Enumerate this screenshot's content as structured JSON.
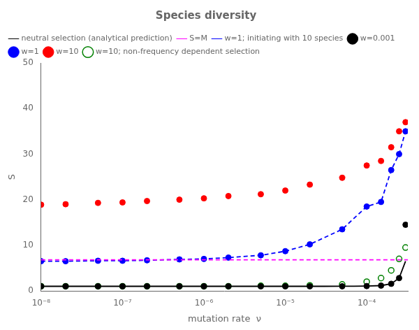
{
  "chart_data": {
    "type": "line",
    "title": "Species diversity",
    "x_label": "mutation rate  ν",
    "y_label": "S",
    "log": "x",
    "grid": false,
    "legend": "upper left",
    "xlim": [
      1e-08,
      0.00032
    ],
    "xticks": [
      {
        "value": 1e-08,
        "label": "10⁻⁸"
      },
      {
        "value": 1e-07,
        "label": "10⁻⁷"
      },
      {
        "value": 1e-06,
        "label": "10⁻⁶"
      },
      {
        "value": 1e-05,
        "label": "10⁻⁵"
      },
      {
        "value": 0.0001,
        "label": "10⁻⁴"
      }
    ],
    "ylim": [
      0,
      50
    ],
    "yticks": [
      0,
      10,
      20,
      30,
      40,
      50
    ],
    "series": [
      {
        "name": "neutral selection (analytical prediction)",
        "type": "line",
        "line_style": "solid",
        "color": "#000000",
        "x": [
          1e-08,
          2e-08,
          3e-08,
          5e-08,
          7e-08,
          1e-07,
          2e-07,
          3e-07,
          5e-07,
          7e-07,
          1e-06,
          2e-06,
          3e-06,
          5e-06,
          7e-06,
          1e-05,
          2e-05,
          3e-05,
          5e-05,
          7e-05,
          0.0001,
          0.00015,
          0.0002,
          0.00025,
          0.0003
        ],
        "values": [
          1.0,
          1.0,
          1.0,
          1.0,
          1.0,
          1.0,
          1.0,
          1.0,
          1.0,
          1.0,
          1.0,
          1.0,
          1.0,
          1.0,
          1.0,
          1.0,
          1.0,
          1.0,
          1.01,
          1.02,
          1.05,
          1.15,
          1.55,
          2.8,
          6.5
        ]
      },
      {
        "name": "S=M",
        "type": "line",
        "line_style": "dashed",
        "color": "#ff00ff",
        "x": [
          1e-08,
          0.00032
        ],
        "values": [
          6.8,
          6.8
        ]
      },
      {
        "name": "w=1; initiating with 10 species",
        "type": "line",
        "line_style": "dashed",
        "color": "#0000ff",
        "x": [
          1e-08,
          2e-08,
          5e-08,
          1e-07,
          2e-07,
          5e-07,
          1e-06,
          2e-06,
          5e-06,
          1e-05,
          2e-05,
          5e-05,
          0.0001,
          0.00015,
          0.0002,
          0.00025,
          0.0003
        ],
        "values": [
          6.5,
          6.5,
          6.6,
          6.6,
          6.7,
          6.9,
          7.0,
          7.3,
          7.8,
          8.7,
          10.2,
          13.5,
          18.5,
          19.5,
          26.5,
          30.0,
          35.0
        ]
      },
      {
        "name": "w=0.001",
        "type": "scatter",
        "marker": "circle",
        "color": "#000000",
        "x": [
          1e-08,
          2e-08,
          5e-08,
          1e-07,
          2e-07,
          5e-07,
          1e-06,
          2e-06,
          5e-06,
          1e-05,
          2e-05,
          5e-05,
          0.0001,
          0.00015,
          0.0002,
          0.00025,
          0.0003
        ],
        "values": [
          1.0,
          1.0,
          1.0,
          1.0,
          1.0,
          1.0,
          1.0,
          1.0,
          1.0,
          1.0,
          1.0,
          1.0,
          1.05,
          1.15,
          1.55,
          2.8,
          14.5
        ]
      },
      {
        "name": "w=1",
        "type": "scatter",
        "marker": "circle",
        "color": "#0000ff",
        "x": [
          1e-08,
          2e-08,
          5e-08,
          1e-07,
          2e-07,
          5e-07,
          1e-06,
          2e-06,
          5e-06,
          1e-05,
          2e-05,
          5e-05,
          0.0001,
          0.00015,
          0.0002,
          0.00025,
          0.0003
        ],
        "values": [
          6.5,
          6.5,
          6.6,
          6.6,
          6.7,
          6.9,
          7.0,
          7.3,
          7.8,
          8.7,
          10.2,
          13.5,
          18.5,
          19.5,
          26.5,
          30.0,
          35.0
        ]
      },
      {
        "name": "w=10",
        "type": "scatter",
        "marker": "circle",
        "color": "#ff0000",
        "x": [
          1e-08,
          2e-08,
          5e-08,
          1e-07,
          2e-07,
          5e-07,
          1e-06,
          2e-06,
          5e-06,
          1e-05,
          2e-05,
          5e-05,
          0.0001,
          0.00015,
          0.0002,
          0.00025,
          0.0003
        ],
        "values": [
          18.9,
          19.0,
          19.3,
          19.4,
          19.7,
          20.0,
          20.3,
          20.8,
          21.2,
          22.0,
          23.3,
          24.8,
          27.5,
          28.5,
          31.5,
          35.0,
          37.0
        ]
      },
      {
        "name": "w=10; non-frequency dependent selection",
        "type": "scatter",
        "marker": "open_circle",
        "color": "#008000",
        "x": [
          1e-08,
          2e-08,
          5e-08,
          1e-07,
          2e-07,
          5e-07,
          1e-06,
          2e-06,
          5e-06,
          1e-05,
          2e-05,
          5e-05,
          0.0001,
          0.00015,
          0.0002,
          0.00025,
          0.0003
        ],
        "values": [
          1.0,
          1.0,
          1.0,
          1.0,
          1.0,
          1.0,
          1.0,
          1.0,
          1.1,
          1.1,
          1.2,
          1.4,
          2.0,
          2.8,
          4.5,
          7.0,
          9.5
        ]
      }
    ]
  }
}
